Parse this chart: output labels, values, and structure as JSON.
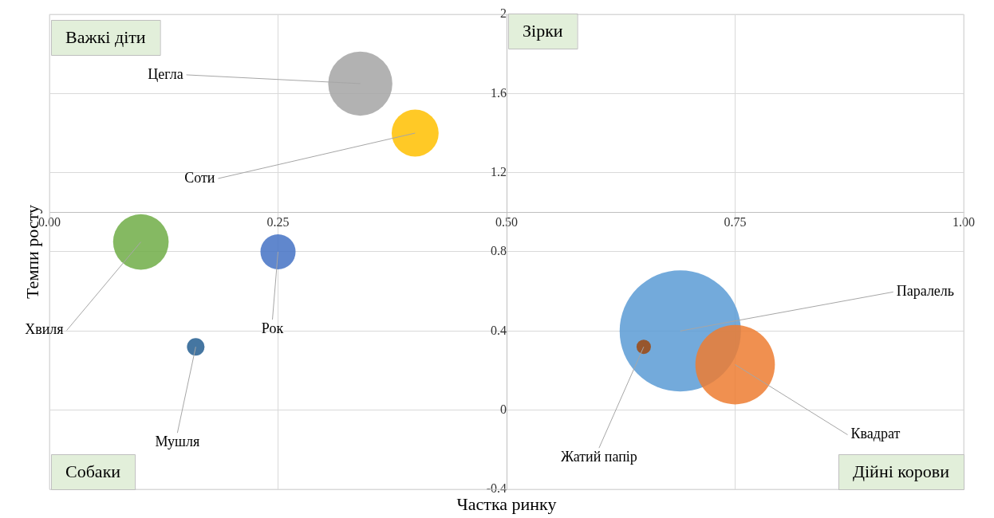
{
  "chart_data": {
    "type": "bubble",
    "xlabel": "Частка ринку",
    "ylabel": "Темпи росту",
    "annotations": [
      "Важкі діти",
      "Зірки",
      "Собаки",
      "Дійні корови"
    ],
    "xlim": [
      0,
      1
    ],
    "xticks": [
      {
        "value": 0,
        "label": "0.00"
      },
      {
        "value": 0.25,
        "label": "0.25"
      },
      {
        "value": 0.5,
        "label": "0.50"
      },
      {
        "value": 0.75,
        "label": "0.75"
      },
      {
        "value": 1,
        "label": "1.00"
      }
    ],
    "ylim": [
      -0.4,
      2
    ],
    "yticks": [
      -0.4,
      0,
      0.4,
      0.8,
      1.2,
      1.6,
      2
    ],
    "grid": true,
    "series": [
      {
        "name": "Цегла",
        "color": "#a5a5a5",
        "x": [
          0.34
        ],
        "values": [
          1.65
        ],
        "sizes": [
          0.28
        ]
      },
      {
        "name": "Соти",
        "color": "#ffc000",
        "x": [
          0.4
        ],
        "values": [
          1.4
        ],
        "sizes": [
          0.15
        ]
      },
      {
        "name": "Хвиля",
        "color": "#70ad47",
        "x": [
          0.1
        ],
        "values": [
          0.85
        ],
        "sizes": [
          0.21
        ]
      },
      {
        "name": "Рок",
        "color": "#4472c4",
        "x": [
          0.25
        ],
        "values": [
          0.8
        ],
        "sizes": [
          0.084
        ]
      },
      {
        "name": "Мушля",
        "color": "#255e91",
        "x": [
          0.16
        ],
        "values": [
          0.32
        ],
        "sizes": [
          0.021
        ]
      },
      {
        "name": "Паралель",
        "color": "#5b9bd5",
        "x": [
          0.69
        ],
        "values": [
          0.4
        ],
        "sizes": [
          1
        ]
      },
      {
        "name": "Квадрат",
        "color": "#ed7d31",
        "x": [
          0.75
        ],
        "values": [
          0.23
        ],
        "sizes": [
          0.43
        ]
      },
      {
        "name": "Жатий папір",
        "color": "#9e480e",
        "x": [
          0.65
        ],
        "values": [
          0.32
        ],
        "sizes": [
          0.014
        ]
      }
    ]
  }
}
